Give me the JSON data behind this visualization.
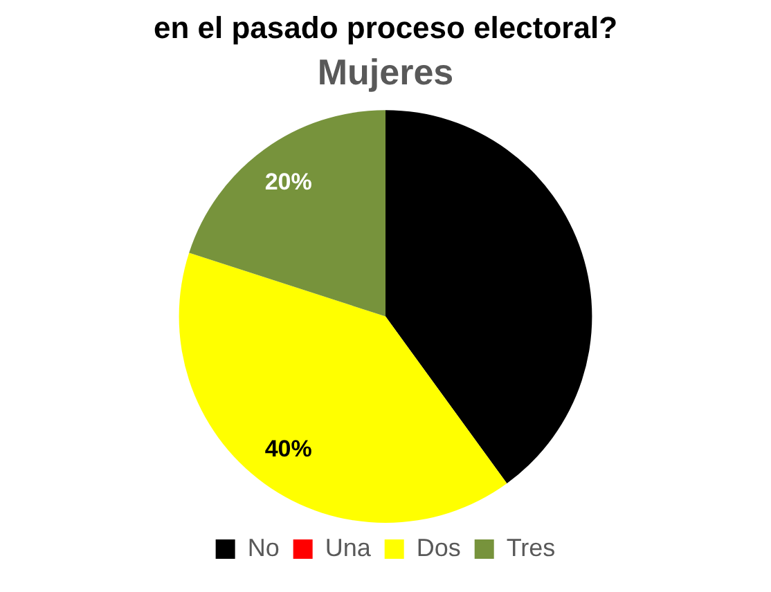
{
  "chart_data": {
    "type": "pie",
    "title": "en el pasado proceso electoral?",
    "subtitle": "Mujeres",
    "categories": [
      "No",
      "Una",
      "Dos",
      "Tres"
    ],
    "values": [
      40,
      0,
      40,
      20
    ],
    "colors": [
      "#000000",
      "#ff0000",
      "#ffff00",
      "#77933c"
    ],
    "value_labels": [
      null,
      null,
      "40%",
      "20%"
    ],
    "legend": "bottom"
  }
}
